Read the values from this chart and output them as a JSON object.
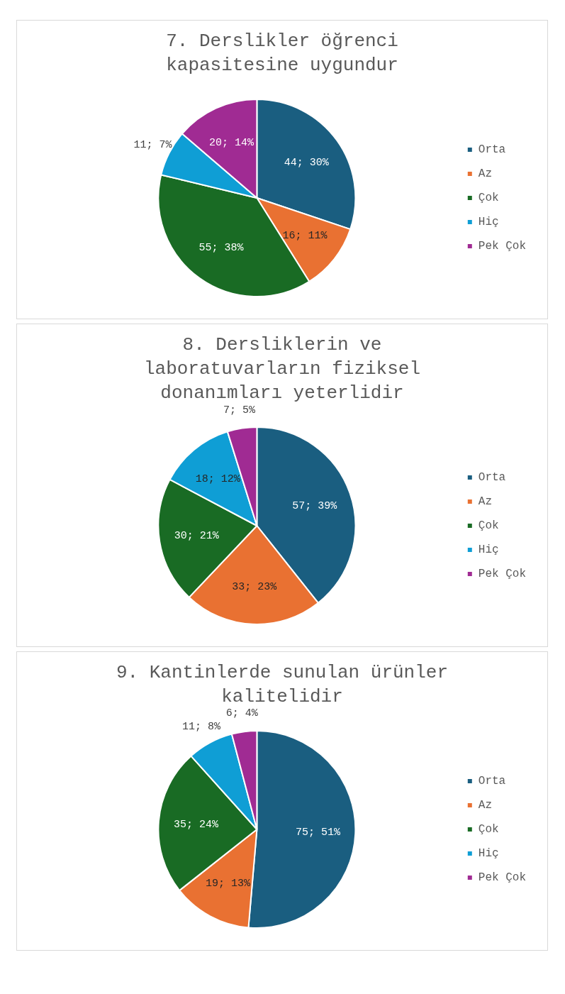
{
  "chart_data": [
    {
      "type": "pie",
      "title": "7. Derslikler öğrenci kapasitesine uygundur",
      "categories": [
        "Orta",
        "Az",
        "Çok",
        "Hiç",
        "Pek Çok"
      ],
      "values": [
        44,
        16,
        55,
        11,
        20
      ],
      "colors": [
        "#1a5e80",
        "#e97132",
        "#196b24",
        "#0f9ed5",
        "#a02b93"
      ],
      "value_labels": [
        "44; 30%",
        "16; 11%",
        "55; 38%",
        "11; 7%",
        "20; 14%"
      ],
      "legend": "right"
    },
    {
      "type": "pie",
      "title": "8. Dersliklerin ve laboratuvarların fiziksel donanımları yeterlidir",
      "categories": [
        "Orta",
        "Az",
        "Çok",
        "Hiç",
        "Pek Çok"
      ],
      "values": [
        57,
        33,
        30,
        18,
        7
      ],
      "colors": [
        "#1a5e80",
        "#e97132",
        "#196b24",
        "#0f9ed5",
        "#a02b93"
      ],
      "value_labels": [
        "57; 39%",
        "33; 23%",
        "30; 21%",
        "18; 12%",
        "7; 5%"
      ],
      "legend": "right"
    },
    {
      "type": "pie",
      "title": "9. Kantinlerde sunulan ürünler kalitelidir",
      "categories": [
        "Orta",
        "Az",
        "Çok",
        "Hiç",
        "Pek Çok"
      ],
      "values": [
        75,
        19,
        35,
        11,
        6
      ],
      "colors": [
        "#1a5e80",
        "#e97132",
        "#196b24",
        "#0f9ed5",
        "#a02b93"
      ],
      "value_labels": [
        "75; 51%",
        "19; 13%",
        "35; 24%",
        "11; 8%",
        "6; 4%"
      ],
      "legend": "right"
    }
  ]
}
